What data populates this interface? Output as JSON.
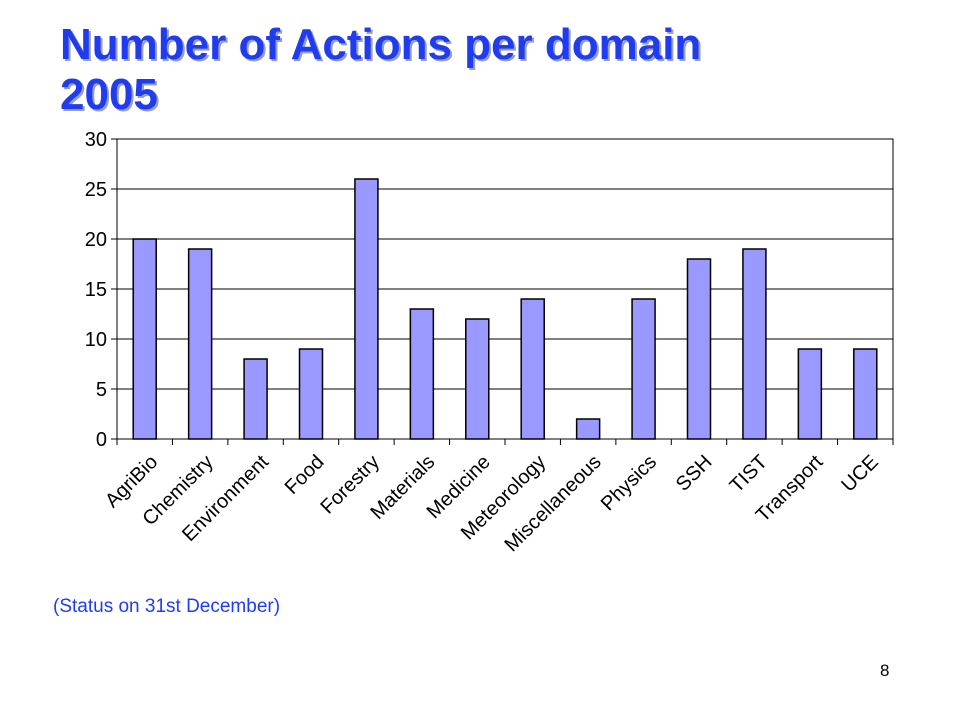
{
  "slide": {
    "title_line1": "Number of Actions per domain",
    "title_line2": "2005",
    "note": "(Status on 31st December)",
    "page_number": "8"
  },
  "colors": {
    "title": "#1f3cf0",
    "bar_fill": "#9999ff",
    "bar_stroke": "#000000",
    "gridline": "#000000"
  },
  "chart_data": {
    "type": "bar",
    "categories": [
      "AgriBio",
      "Chemistry",
      "Environment",
      "Food",
      "Forestry",
      "Materials",
      "Medicine",
      "Meteorology",
      "Miscellaneous",
      "Physics",
      "SSH",
      "TIST",
      "Transport",
      "UCE"
    ],
    "values": [
      20,
      19,
      8,
      9,
      26,
      13,
      12,
      14,
      2,
      14,
      18,
      19,
      9,
      9
    ],
    "ylim": [
      0,
      30
    ],
    "yticks": [
      0,
      5,
      10,
      15,
      20,
      25,
      30
    ],
    "grid": true,
    "legend": "none"
  }
}
